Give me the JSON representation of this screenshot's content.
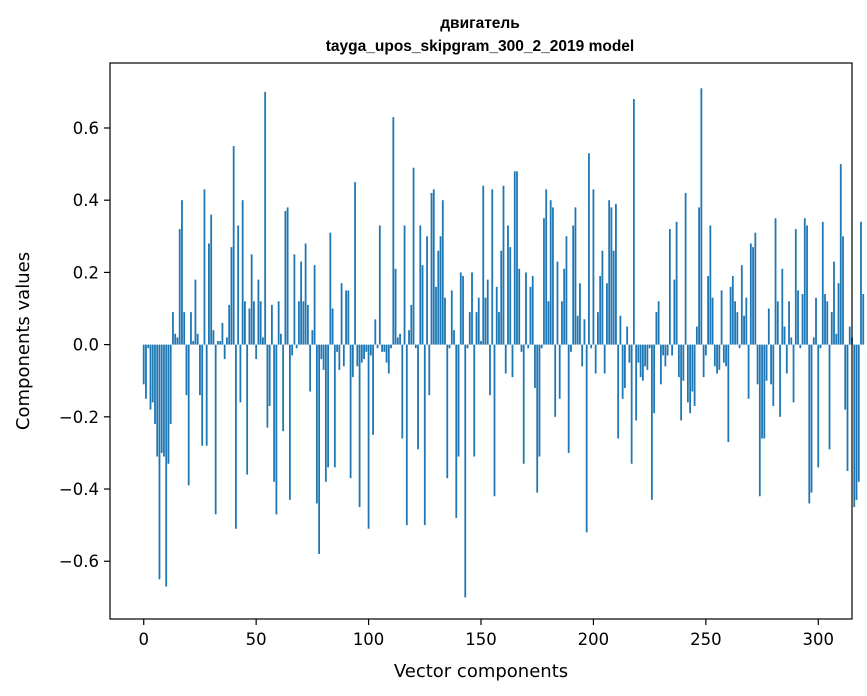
{
  "chart_data": {
    "type": "bar",
    "title_lines": [
      "двигатель",
      "tayga_upos_skipgram_300_2_2019 model"
    ],
    "xlabel": "Vector components",
    "ylabel": "Components values",
    "xlim": [
      -15,
      315
    ],
    "ylim": [
      -0.76,
      0.78
    ],
    "xticks": [
      0,
      50,
      100,
      150,
      200,
      250,
      300
    ],
    "yticks": [
      -0.6,
      -0.4,
      -0.2,
      0.0,
      0.2,
      0.4,
      0.6
    ],
    "ytick_labels": [
      "−0.6",
      "−0.4",
      "−0.2",
      "0.0",
      "0.2",
      "0.4",
      "0.6"
    ],
    "bar_color": "#1f77b4",
    "grid": false,
    "values": [
      -0.11,
      -0.15,
      -0.01,
      -0.18,
      -0.16,
      -0.22,
      -0.31,
      -0.65,
      -0.3,
      -0.31,
      -0.67,
      -0.33,
      -0.22,
      0.09,
      0.03,
      0.02,
      0.32,
      0.4,
      0.09,
      -0.14,
      -0.39,
      0.09,
      0.01,
      0.18,
      0.03,
      -0.14,
      -0.28,
      0.43,
      -0.28,
      0.28,
      0.36,
      0.04,
      -0.47,
      0.01,
      0.01,
      0.06,
      -0.04,
      0.02,
      0.11,
      0.27,
      0.55,
      -0.51,
      0.33,
      -0.16,
      0.4,
      0.12,
      -0.36,
      0.1,
      0.25,
      0.12,
      -0.04,
      0.18,
      0.12,
      0.02,
      0.7,
      -0.23,
      -0.17,
      0.11,
      -0.38,
      -0.47,
      0.12,
      0.03,
      -0.24,
      0.37,
      0.38,
      -0.43,
      -0.03,
      0.25,
      -0.01,
      0.12,
      0.23,
      0.12,
      0.28,
      0.11,
      -0.13,
      0.04,
      0.22,
      -0.44,
      -0.58,
      -0.04,
      -0.07,
      -0.38,
      -0.34,
      0.31,
      0.1,
      -0.34,
      -0.02,
      -0.07,
      0.17,
      -0.06,
      0.15,
      0.15,
      -0.37,
      -0.09,
      0.45,
      -0.06,
      -0.45,
      -0.05,
      -0.04,
      -0.02,
      -0.51,
      -0.03,
      -0.25,
      0.07,
      -0.01,
      0.33,
      -0.02,
      -0.02,
      -0.05,
      -0.08,
      -0.01,
      0.63,
      0.21,
      0.02,
      0.03,
      -0.26,
      0.33,
      -0.5,
      0.04,
      0.11,
      0.49,
      -0.01,
      -0.29,
      0.33,
      0.22,
      -0.5,
      0.3,
      -0.14,
      0.42,
      0.43,
      0.16,
      0.26,
      0.3,
      0.4,
      0.13,
      -0.37,
      -0.01,
      0.15,
      0.04,
      -0.48,
      -0.31,
      0.2,
      0.19,
      -0.7,
      -0.01,
      0.09,
      0.2,
      -0.31,
      0.09,
      0.13,
      0.01,
      0.44,
      0.13,
      0.18,
      -0.14,
      0.43,
      -0.42,
      0.16,
      0.09,
      0.26,
      0.44,
      -0.08,
      0.33,
      0.27,
      -0.09,
      0.48,
      0.48,
      0.21,
      -0.02,
      -0.33,
      0.2,
      -0.01,
      0.16,
      0.19,
      -0.12,
      -0.41,
      -0.31,
      -0.01,
      0.35,
      0.43,
      0.12,
      0.4,
      0.38,
      -0.2,
      0.23,
      -0.15,
      0.12,
      0.21,
      0.3,
      -0.3,
      -0.02,
      0.33,
      0.38,
      0.08,
      0.17,
      -0.06,
      0.07,
      -0.52,
      0.53,
      -0.01,
      0.43,
      -0.08,
      0.09,
      0.19,
      0.26,
      -0.08,
      0.17,
      0.4,
      0.38,
      0.26,
      0.39,
      -0.26,
      0.08,
      -0.15,
      -0.12,
      0.05,
      -0.05,
      -0.33,
      0.68,
      -0.21,
      -0.05,
      -0.09,
      -0.1,
      -0.06,
      -0.07,
      -0.01,
      -0.43,
      -0.19,
      0.09,
      0.12,
      -0.11,
      -0.03,
      -0.06,
      -0.03,
      0.32,
      -0.03,
      0.18,
      0.34,
      -0.09,
      -0.21,
      -0.1,
      0.42,
      -0.16,
      -0.19,
      -0.13,
      -0.17,
      0.05,
      0.38,
      0.71,
      -0.09,
      -0.03,
      0.19,
      0.33,
      0.13,
      -0.06,
      -0.08,
      -0.07,
      0.15,
      -0.05,
      -0.06,
      -0.27,
      0.16,
      0.19,
      0.12,
      0.09,
      -0.01,
      0.22,
      0.08,
      0.13,
      -0.15,
      0.28,
      0.27,
      0.31,
      -0.11,
      -0.42,
      -0.26,
      -0.26,
      -0.1,
      0.1,
      -0.11,
      -0.17,
      0.35,
      0.12,
      -0.2,
      0.21,
      0.05,
      -0.08,
      0.12,
      0.02,
      -0.16,
      0.32,
      0.15,
      -0.01,
      0.14,
      0.35,
      0.33,
      -0.44,
      -0.41,
      0.02,
      0.13,
      -0.34,
      -0.01,
      0.34,
      0.14,
      0.12,
      -0.29,
      0.09,
      0.23,
      0.03,
      0.17,
      0.5,
      0.3,
      -0.18,
      -0.35,
      0.05,
      0.02,
      -0.45,
      -0.43,
      -0.38,
      0.34,
      0.14
    ]
  }
}
